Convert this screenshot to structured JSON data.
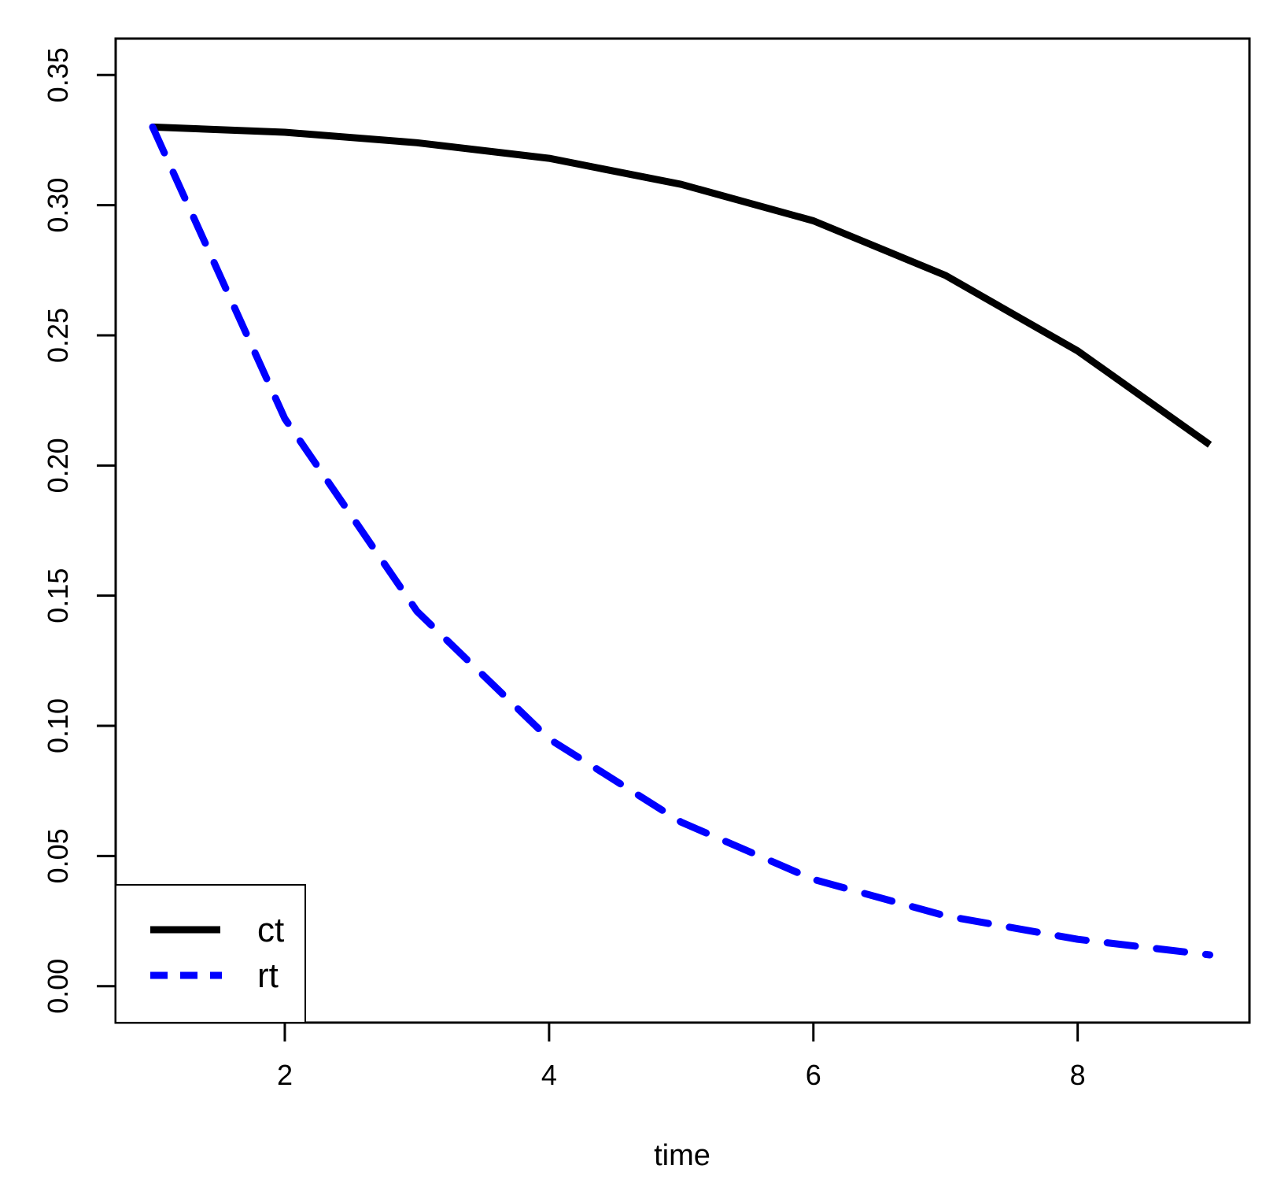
{
  "chart_data": {
    "type": "line",
    "title": "",
    "xlabel": "time",
    "ylabel": "",
    "xlim": [
      0.72,
      9.3
    ],
    "ylim": [
      -0.014,
      0.364
    ],
    "x_ticks": [
      2,
      4,
      6,
      8
    ],
    "x_tick_labels": [
      "2",
      "4",
      "6",
      "8"
    ],
    "y_ticks": [
      0.0,
      0.05,
      0.1,
      0.15,
      0.2,
      0.25,
      0.3,
      0.35
    ],
    "y_tick_labels": [
      "0.00",
      "0.05",
      "0.10",
      "0.15",
      "0.20",
      "0.25",
      "0.30",
      "0.35"
    ],
    "grid": false,
    "legend_position": "bottom-left",
    "x": [
      1,
      2,
      3,
      4,
      5,
      6,
      7,
      8,
      9
    ],
    "series": [
      {
        "name": "ct",
        "color": "#000000",
        "line_style": "solid",
        "values": [
          0.33,
          0.328,
          0.324,
          0.318,
          0.308,
          0.294,
          0.273,
          0.244,
          0.208
        ]
      },
      {
        "name": "rt",
        "color": "#0000ff",
        "line_style": "dashed",
        "values": [
          0.33,
          0.218,
          0.144,
          0.095,
          0.063,
          0.041,
          0.027,
          0.018,
          0.012
        ]
      }
    ]
  }
}
